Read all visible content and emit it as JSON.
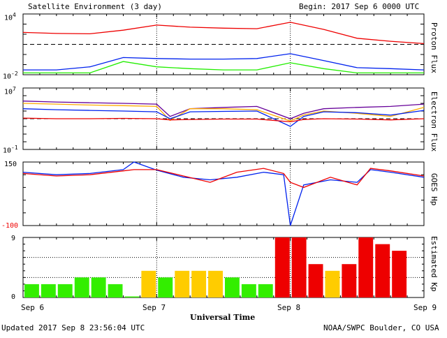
{
  "header": {
    "title": "Satellite Environment (3 day)",
    "begin": "Begin:  2017 Sep 6 0000 UTC"
  },
  "footer": {
    "updated": "Updated 2017 Sep  8 23:56:04 UTC",
    "source": "NOAA/SWPC Boulder, CO USA"
  },
  "colors": {
    "red": "#ee0000",
    "blue": "#0022ee",
    "green": "#22ee00",
    "orange": "#ffaa00",
    "purple": "#660099",
    "kp_green": "#33ee00",
    "kp_yellow": "#ffcc00",
    "kp_red": "#ee0000"
  },
  "chart_data": [
    {
      "id": "proton",
      "type": "line",
      "ylabel": "Proton Flux",
      "yscale": "log",
      "ylim": [
        0.01,
        10000
      ],
      "ytick_labels": [
        {
          "base": "10",
          "exp": "4",
          "value": 10000
        },
        {
          "base": "10",
          "exp": "-2",
          "value": 0.01
        }
      ],
      "reference_level": 10,
      "x": [
        0,
        0.25,
        0.5,
        0.75,
        1.0,
        1.25,
        1.5,
        1.75,
        2.0,
        2.25,
        2.5,
        2.75,
        3.0
      ],
      "series": [
        {
          "color": "red",
          "values": [
            150,
            120,
            110,
            250,
            800,
            500,
            400,
            350,
            1500,
            300,
            40,
            20,
            12
          ]
        },
        {
          "color": "blue",
          "values": [
            0.03,
            0.03,
            0.06,
            0.5,
            0.4,
            0.35,
            0.35,
            0.4,
            1.2,
            0.25,
            0.05,
            0.04,
            0.03
          ]
        },
        {
          "color": "green",
          "values": [
            0.015,
            0.015,
            0.015,
            0.2,
            0.06,
            0.04,
            0.03,
            0.03,
            0.15,
            0.04,
            0.015,
            0.015,
            0.015
          ]
        }
      ]
    },
    {
      "id": "electron",
      "type": "line",
      "ylabel": "Electron Flux",
      "yscale": "log",
      "ylim": [
        0.1,
        10000000
      ],
      "ytick_labels": [
        {
          "base": "10",
          "exp": "7",
          "value": 10000000
        },
        {
          "base": "10",
          "exp": "-1",
          "value": 0.1
        }
      ],
      "reference_level": 1000,
      "x": [
        0,
        0.25,
        0.5,
        0.75,
        1.0,
        1.1,
        1.25,
        1.5,
        1.75,
        2.0,
        2.1,
        2.25,
        2.5,
        2.75,
        3.0
      ],
      "series": [
        {
          "color": "purple",
          "values": [
            200000,
            150000,
            120000,
            100000,
            80000,
            2000,
            20000,
            30000,
            40000,
            1000,
            5000,
            20000,
            30000,
            40000,
            80000
          ]
        },
        {
          "color": "orange",
          "values": [
            100000,
            80000,
            60000,
            50000,
            40000,
            600,
            20000,
            20000,
            15000,
            500,
            3000,
            10000,
            5000,
            2000,
            30000
          ]
        },
        {
          "color": "blue",
          "values": [
            20000,
            15000,
            12000,
            10000,
            8000,
            1000,
            8000,
            9000,
            10000,
            100,
            2000,
            8000,
            6000,
            3000,
            12000
          ]
        },
        {
          "color": "red",
          "values": [
            1200,
            1000,
            1000,
            1100,
            1000,
            700,
            800,
            900,
            900,
            400,
            800,
            1000,
            900,
            700,
            1000
          ]
        }
      ]
    },
    {
      "id": "hp",
      "type": "line",
      "ylabel": "GOES Hp",
      "ylim": [
        -100,
        150
      ],
      "ytick_labels": [
        {
          "text": "150",
          "value": 150,
          "color": "black"
        },
        {
          "text": "-100",
          "value": -100,
          "color": "red"
        }
      ],
      "x": [
        0,
        0.25,
        0.5,
        0.75,
        0.83,
        1.0,
        1.2,
        1.4,
        1.6,
        1.8,
        1.95,
        2.0,
        2.1,
        2.3,
        2.5,
        2.6,
        2.75,
        3.0
      ],
      "series": [
        {
          "color": "blue",
          "values": [
            110,
            100,
            105,
            120,
            150,
            118,
            90,
            80,
            90,
            110,
            100,
            -100,
            60,
            80,
            70,
            120,
            110,
            90
          ]
        },
        {
          "color": "red",
          "values": [
            105,
            95,
            100,
            115,
            120,
            120,
            95,
            70,
            110,
            125,
            105,
            70,
            50,
            90,
            60,
            125,
            115,
            95
          ]
        }
      ]
    },
    {
      "id": "kp",
      "type": "bar",
      "ylabel": "Estimated Kp",
      "ylim": [
        0,
        9
      ],
      "ytick_labels": [
        {
          "text": "9",
          "value": 9
        },
        {
          "text": "0",
          "value": 0
        }
      ],
      "x_ticks": [
        "Sep 6",
        "Sep 7",
        "Sep 8",
        "Sep 9"
      ],
      "xlabel": "Universal Time",
      "values": [
        2,
        2,
        2,
        3,
        3,
        2,
        0,
        4,
        3,
        4,
        4,
        4,
        3,
        2,
        2,
        9,
        9,
        5,
        4,
        5,
        9,
        8,
        7
      ],
      "bar_colors": [
        "kp_green",
        "kp_green",
        "kp_green",
        "kp_green",
        "kp_green",
        "kp_green",
        "kp_green",
        "kp_yellow",
        "kp_green",
        "kp_yellow",
        "kp_yellow",
        "kp_yellow",
        "kp_green",
        "kp_green",
        "kp_green",
        "kp_red",
        "kp_red",
        "kp_red",
        "kp_yellow",
        "kp_red",
        "kp_red",
        "kp_red",
        "kp_red"
      ]
    }
  ]
}
